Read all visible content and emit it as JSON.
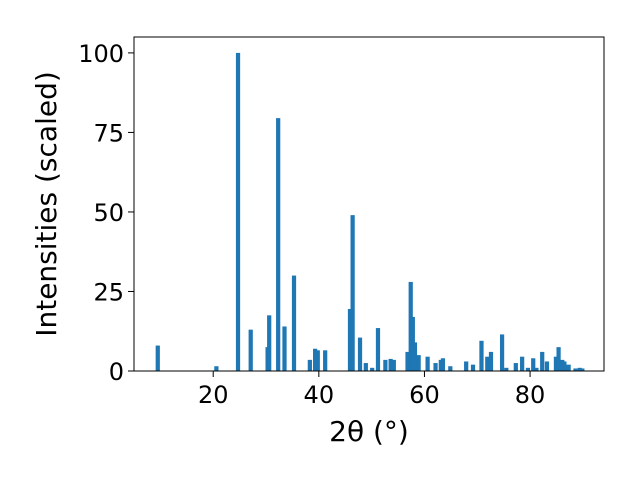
{
  "chart_data": {
    "type": "bar",
    "title": "",
    "xlabel": "2θ (°)",
    "ylabel": "Intensities (scaled)",
    "xlim": [
      5,
      94
    ],
    "ylim": [
      0,
      105
    ],
    "xticks": [
      20,
      40,
      60,
      80
    ],
    "yticks": [
      0,
      25,
      50,
      75,
      100
    ],
    "grid": false,
    "legend": "none",
    "bar_color": "#1f77b4",
    "bar_width": 0.8,
    "x": [
      9.5,
      20.6,
      24.7,
      27.1,
      30.3,
      30.6,
      32.3,
      33.5,
      35.3,
      38.3,
      39.3,
      39.8,
      41.2,
      45.9,
      46.4,
      47.8,
      48.9,
      50.1,
      51.2,
      52.6,
      53.6,
      54.2,
      56.8,
      57.4,
      57.8,
      58.2,
      58.9,
      60.6,
      62.1,
      63.1,
      63.5,
      64.9,
      67.9,
      69.2,
      70.8,
      71.9,
      72.6,
      74.7,
      75.5,
      77.3,
      78.5,
      79.6,
      80.6,
      81.2,
      82.3,
      83.2,
      84.9,
      85.4,
      86.1,
      86.5,
      87.3,
      88.6,
      89.4,
      89.9
    ],
    "y": [
      8.0,
      1.5,
      100.0,
      13.0,
      7.5,
      17.5,
      79.5,
      14.0,
      30.0,
      3.5,
      7.0,
      6.5,
      6.5,
      19.5,
      49.0,
      10.5,
      2.5,
      1.0,
      13.5,
      3.5,
      3.8,
      3.5,
      6.0,
      28.0,
      17.0,
      9.0,
      5.0,
      4.5,
      2.5,
      3.5,
      4.0,
      1.5,
      3.0,
      2.0,
      9.5,
      4.5,
      6.0,
      11.5,
      1.0,
      2.5,
      4.5,
      1.0,
      4.0,
      1.0,
      6.0,
      3.0,
      4.5,
      7.5,
      3.5,
      3.0,
      2.0,
      0.8,
      1.0,
      0.8
    ]
  }
}
